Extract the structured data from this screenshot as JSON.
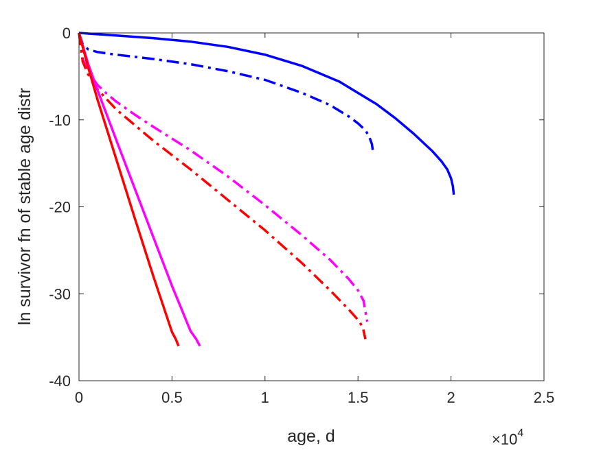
{
  "chart_data": {
    "type": "line",
    "xlabel": "age, d",
    "ylabel": "ln survivor fn of stable age distr",
    "x_multiplier_label": "×10",
    "x_multiplier_exponent": "4",
    "xlim": [
      0,
      25000
    ],
    "ylim": [
      -40,
      0
    ],
    "grid": false,
    "x_ticks": [
      0,
      5000,
      10000,
      15000,
      20000,
      25000
    ],
    "x_tick_labels": [
      "0",
      "0.5",
      "1",
      "1.5",
      "2",
      "2.5"
    ],
    "y_ticks": [
      0,
      -10,
      -20,
      -30,
      -40
    ],
    "y_tick_labels": [
      "0",
      "-10",
      "-20",
      "-30",
      "-40"
    ],
    "series": [
      {
        "color": "#0000ff",
        "style": "solid",
        "x": [
          0,
          2000,
          4000,
          6000,
          8000,
          10000,
          12000,
          14000,
          16000,
          17000,
          18000,
          19000,
          19500,
          19800,
          20000,
          20100,
          20150
        ],
        "y": [
          0,
          -0.3,
          -0.6,
          -1.0,
          -1.6,
          -2.5,
          -3.8,
          -5.6,
          -8.2,
          -9.8,
          -11.6,
          -13.6,
          -14.8,
          -15.7,
          -16.7,
          -17.6,
          -18.6
        ]
      },
      {
        "color": "#0000ff",
        "style": "dashdot",
        "x": [
          0,
          200,
          500,
          1000,
          2000,
          4000,
          6000,
          8000,
          10000,
          12000,
          13500,
          14500,
          15000,
          15400,
          15600,
          15750,
          15800
        ],
        "y": [
          0,
          -1.3,
          -1.9,
          -2.2,
          -2.5,
          -3.0,
          -3.6,
          -4.4,
          -5.4,
          -6.9,
          -8.3,
          -9.6,
          -10.4,
          -11.2,
          -11.9,
          -12.8,
          -13.6
        ]
      },
      {
        "color": "#ff00ff",
        "style": "dashdot",
        "x": [
          0,
          200,
          500,
          1000,
          1500,
          2000,
          3000,
          4000,
          6000,
          8000,
          10000,
          12000,
          13500,
          14500,
          15000,
          15300,
          15500
        ],
        "y": [
          0,
          -3.0,
          -4.5,
          -6.0,
          -7.0,
          -7.9,
          -9.4,
          -10.8,
          -13.5,
          -16.5,
          -19.8,
          -23.3,
          -26.1,
          -28.3,
          -29.6,
          -30.8,
          -33.2
        ]
      },
      {
        "color": "#ff0000",
        "style": "dashdot",
        "x": [
          0,
          200,
          500,
          1000,
          2000,
          4000,
          6000,
          8000,
          10000,
          12000,
          13500,
          14500,
          15000,
          15250,
          15400
        ],
        "y": [
          0,
          -3.3,
          -4.8,
          -6.5,
          -8.8,
          -12.4,
          -15.7,
          -19.2,
          -22.7,
          -26.5,
          -29.6,
          -31.8,
          -33.0,
          -33.8,
          -35.2
        ]
      },
      {
        "color": "#ff00ff",
        "style": "solid",
        "x": [
          0,
          500,
          1000,
          2000,
          3000,
          4000,
          5000,
          6000,
          6300,
          6500
        ],
        "y": [
          0,
          -3.6,
          -6.6,
          -12.3,
          -17.9,
          -23.5,
          -29.1,
          -34.3,
          -35.2,
          -36.0
        ]
      },
      {
        "color": "#ff0000",
        "style": "solid",
        "x": [
          0,
          500,
          1000,
          2000,
          3000,
          4000,
          5000,
          5200,
          5350
        ],
        "y": [
          0,
          -4.0,
          -7.7,
          -14.5,
          -21.3,
          -28.0,
          -34.4,
          -35.2,
          -36.0
        ]
      }
    ]
  }
}
